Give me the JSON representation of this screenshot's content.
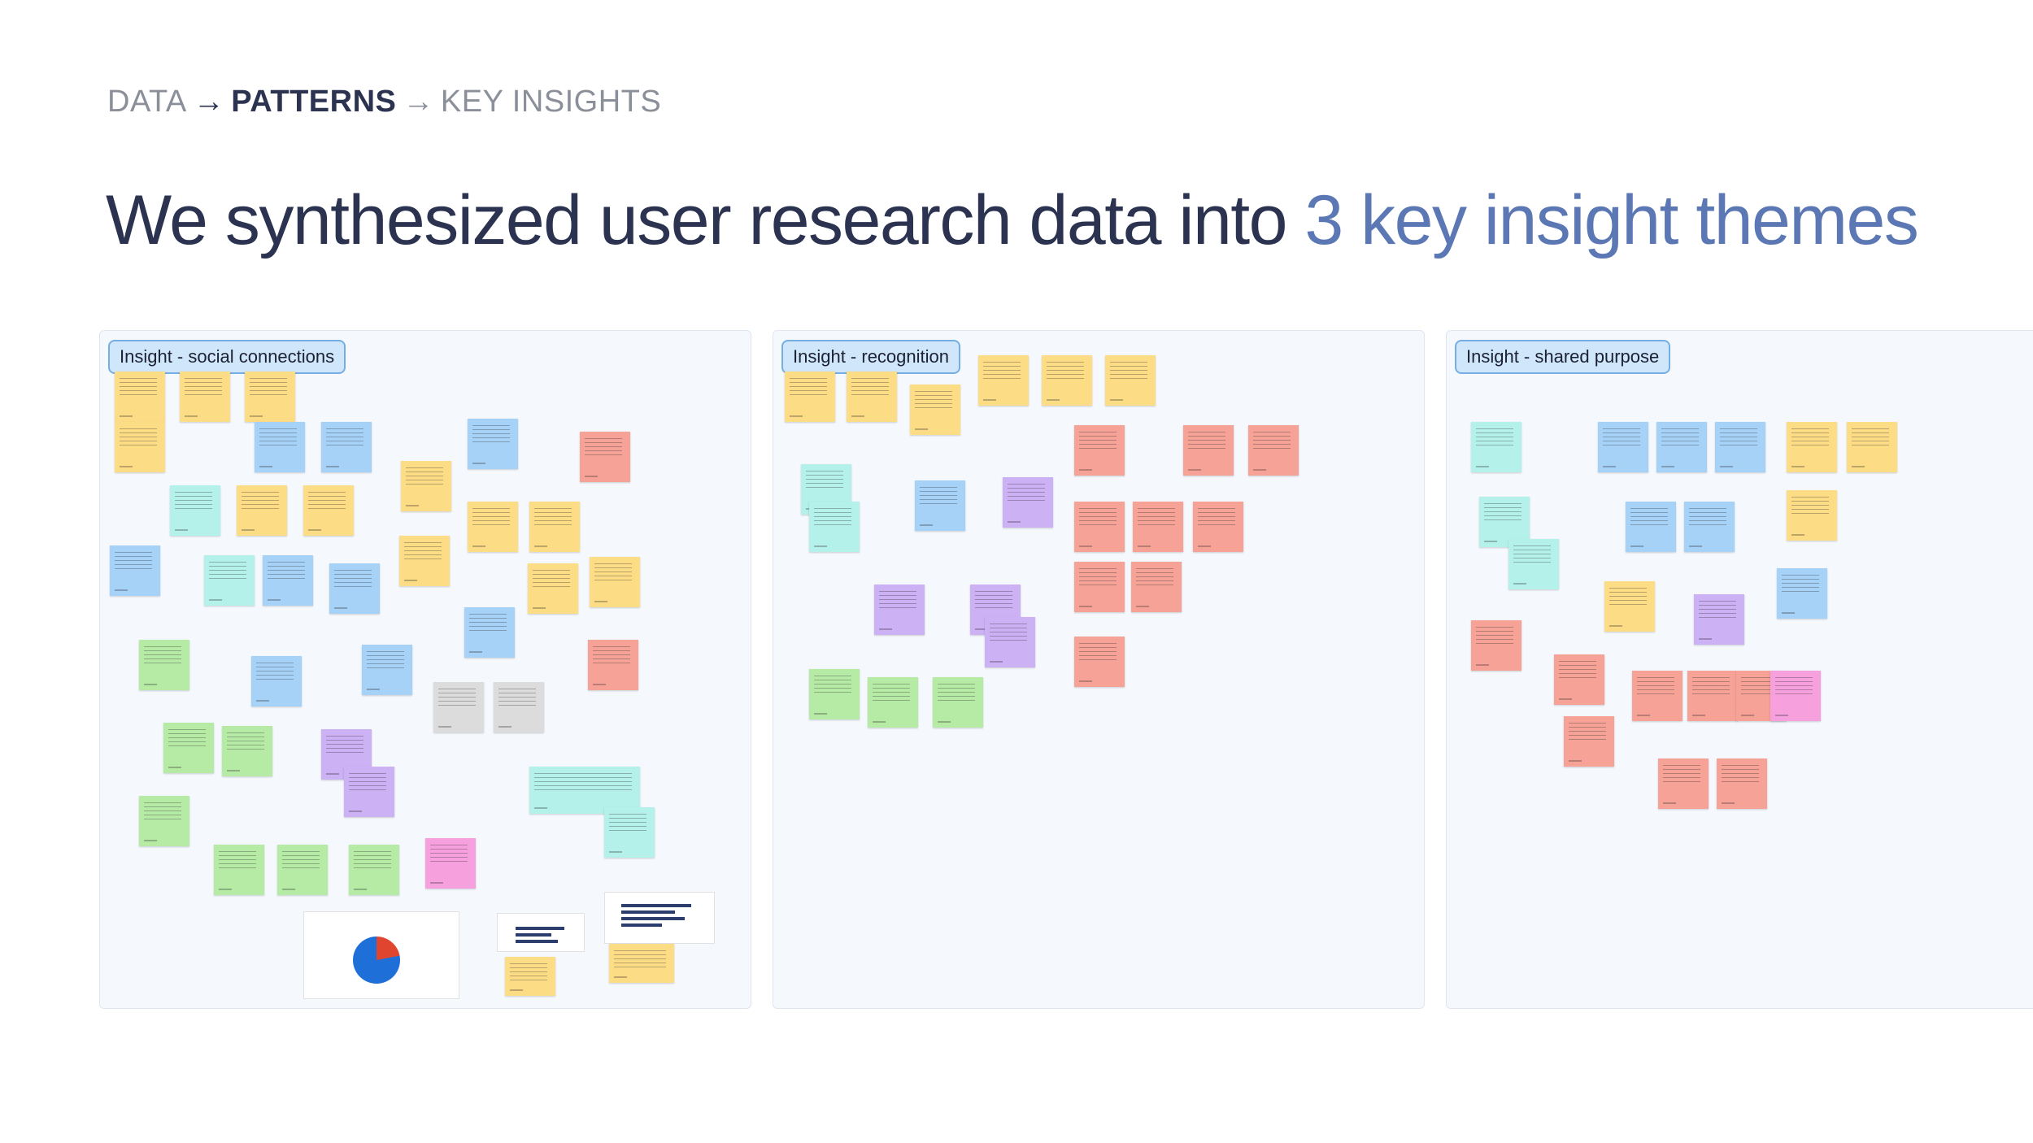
{
  "breadcrumb": {
    "step1": "DATA",
    "sep1": "→",
    "step2": "PATTERNS",
    "sep2": "→",
    "step3": "KEY INSIGHTS"
  },
  "headline": {
    "main": "We synthesized user research data into ",
    "accent": "3 key insight themes"
  },
  "boards": [
    {
      "label": "Insight - social connections"
    },
    {
      "label": "Insight - recognition"
    },
    {
      "label": "Insight - shared purpose"
    }
  ],
  "colors": {
    "title": "#2b3350",
    "accent": "#5b78b5",
    "breadcrumb_muted": "#8a8f99",
    "board_bg": "#f5f9fd",
    "tag_bg": "#cfe6fb",
    "tag_border": "#74aee3",
    "sticky_yellow": "#fddc86",
    "sticky_blue": "#a6d2f8",
    "sticky_purple": "#cdb1f5",
    "sticky_red": "#f7a296",
    "sticky_green": "#b6eba6",
    "sticky_teal": "#b4f1ea",
    "sticky_pink": "#f7a0de",
    "sticky_gray": "#dcdcdc"
  },
  "icons": {
    "arrow": "right-arrow-icon"
  }
}
